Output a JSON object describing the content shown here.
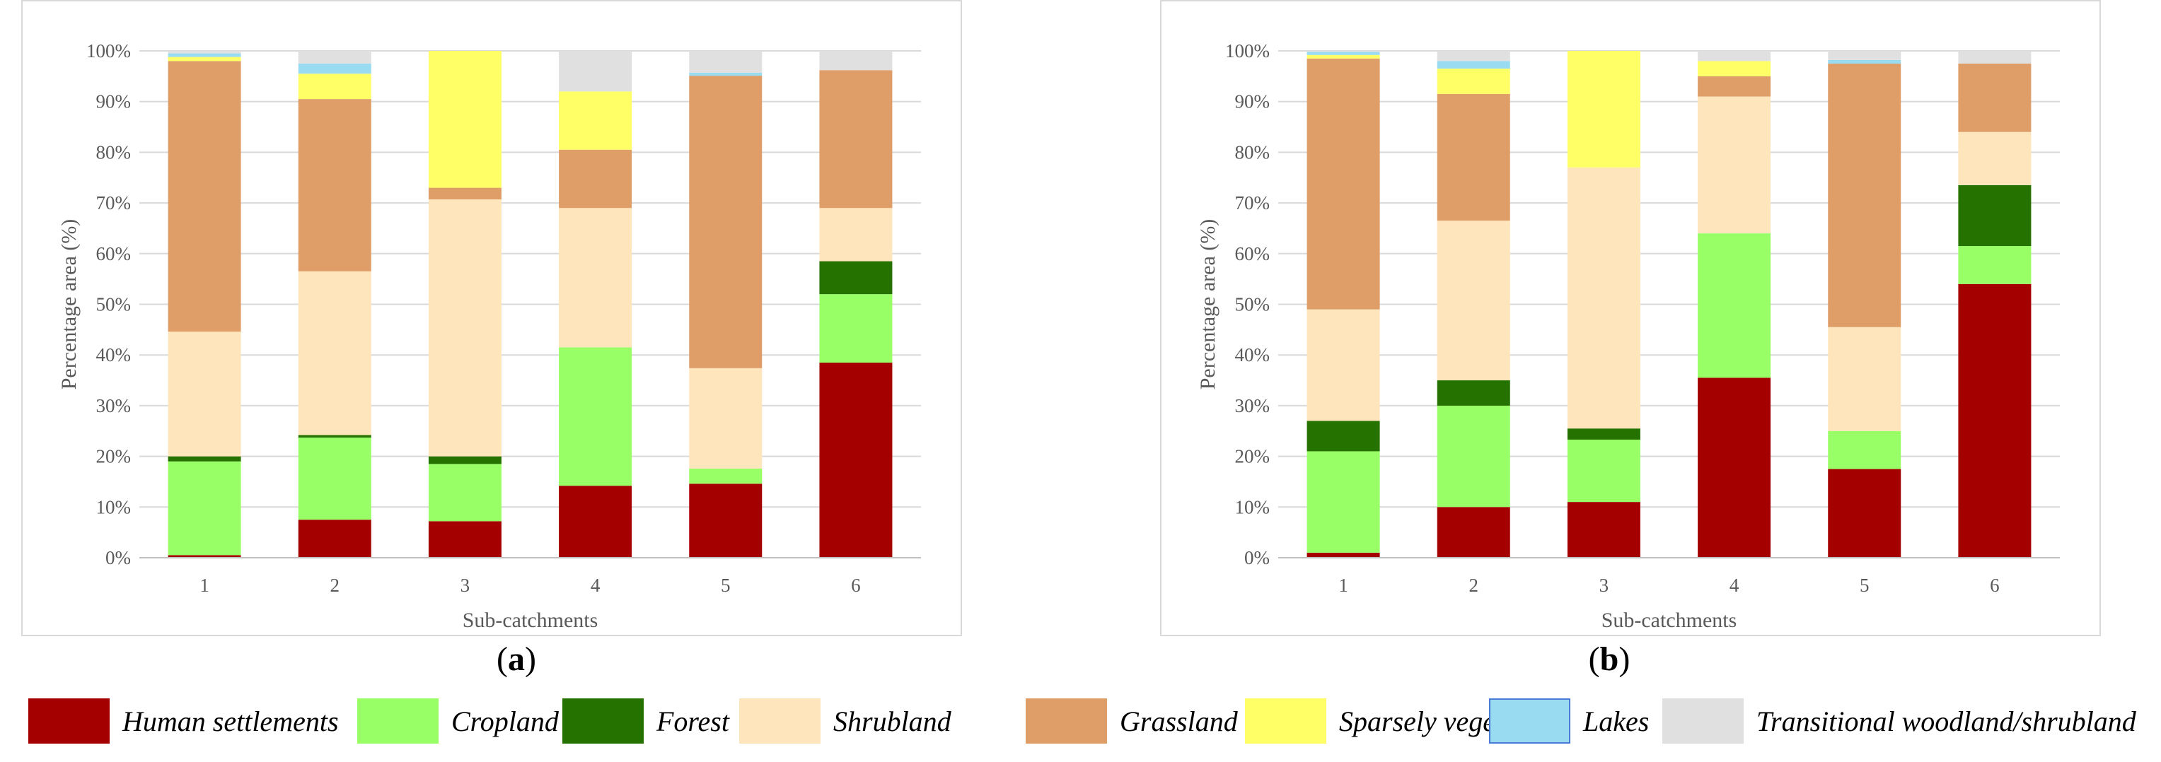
{
  "panel_labels": {
    "a": "a",
    "b": "b"
  },
  "colors": {
    "Human settlements": "#a50000",
    "Cropland": "#99ff66",
    "Forest": "#267200",
    "Shrubland": "#fee5bb",
    "Grassland": "#df9e68",
    "Sparsely vegetated": "#ffff66",
    "Lakes": "#99dbf1",
    "Transitional woodland/shrubland": "#e0e0e0"
  },
  "legend": [
    "Human settlements",
    "Cropland",
    "Forest",
    "Shrubland",
    "Grassland",
    "Sparsely vegetated",
    "Lakes",
    "Transitional woodland/shrubland"
  ],
  "chart_data": [
    {
      "type": "bar",
      "stacked": true,
      "panel": "a",
      "xlabel": "Sub-catchments",
      "ylabel": "Percentage area (%)",
      "ylim": [
        0,
        100
      ],
      "yticks": [
        "0%",
        "10%",
        "20%",
        "30%",
        "40%",
        "50%",
        "60%",
        "70%",
        "80%",
        "90%",
        "100%"
      ],
      "grid": true,
      "categories": [
        "1",
        "2",
        "3",
        "4",
        "5",
        "6"
      ],
      "series": [
        {
          "name": "Human settlements",
          "values": [
            0.5,
            7.5,
            7.2,
            14.2,
            14.6,
            38.5
          ]
        },
        {
          "name": "Cropland",
          "values": [
            18.5,
            16.2,
            11.3,
            27.3,
            3.0,
            13.5
          ]
        },
        {
          "name": "Forest",
          "values": [
            1.0,
            0.5,
            1.5,
            0.0,
            0.0,
            6.5
          ]
        },
        {
          "name": "Shrubland",
          "values": [
            24.6,
            32.3,
            50.7,
            27.5,
            19.8,
            10.5
          ]
        },
        {
          "name": "Grassland",
          "values": [
            53.4,
            34.0,
            2.3,
            11.5,
            57.7,
            27.2
          ]
        },
        {
          "name": "Sparsely vegetated",
          "values": [
            0.8,
            5.0,
            27.0,
            11.5,
            0.0,
            0.0
          ]
        },
        {
          "name": "Lakes",
          "values": [
            0.7,
            2.0,
            0.0,
            0.0,
            0.6,
            0.0
          ]
        },
        {
          "name": "Transitional woodland/shrubland",
          "values": [
            0.5,
            2.5,
            0.0,
            8.0,
            4.3,
            3.8
          ]
        }
      ]
    },
    {
      "type": "bar",
      "stacked": true,
      "panel": "b",
      "xlabel": "Sub-catchments",
      "ylabel": "Percentage area (%)",
      "ylim": [
        0,
        100
      ],
      "yticks": [
        "0%",
        "10%",
        "20%",
        "30%",
        "40%",
        "50%",
        "60%",
        "70%",
        "80%",
        "90%",
        "100%"
      ],
      "grid": true,
      "categories": [
        "1",
        "2",
        "3",
        "4",
        "5",
        "6"
      ],
      "series": [
        {
          "name": "Human settlements",
          "values": [
            1.0,
            10.0,
            11.0,
            35.5,
            17.5,
            54.0
          ]
        },
        {
          "name": "Cropland",
          "values": [
            20.0,
            20.0,
            12.3,
            28.5,
            7.5,
            7.5
          ]
        },
        {
          "name": "Forest",
          "values": [
            6.0,
            5.0,
            2.2,
            0.0,
            0.0,
            12.0
          ]
        },
        {
          "name": "Shrubland",
          "values": [
            22.0,
            31.5,
            51.5,
            27.0,
            20.5,
            10.5
          ]
        },
        {
          "name": "Grassland",
          "values": [
            49.5,
            25.0,
            0.0,
            4.0,
            52.0,
            13.5
          ]
        },
        {
          "name": "Sparsely vegetated",
          "values": [
            0.7,
            5.0,
            23.0,
            3.0,
            0.0,
            0.0
          ]
        },
        {
          "name": "Lakes",
          "values": [
            0.6,
            1.5,
            0.0,
            0.0,
            0.7,
            0.0
          ]
        },
        {
          "name": "Transitional woodland/shrubland",
          "values": [
            0.2,
            2.0,
            0.0,
            2.0,
            1.8,
            2.5
          ]
        }
      ]
    }
  ]
}
